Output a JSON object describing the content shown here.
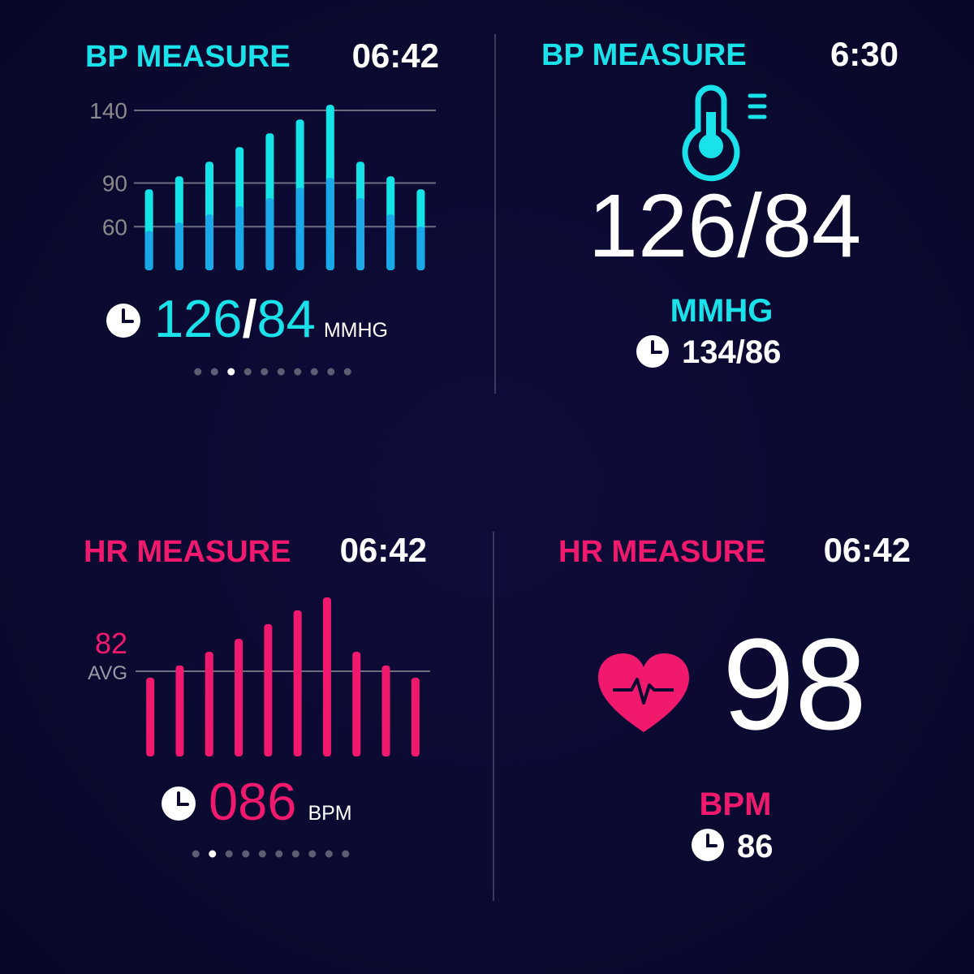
{
  "panels": [
    {
      "title": "BP MEASURE",
      "time": "06:42",
      "chart": {
        "type": "bar",
        "ylim": [
          30,
          145
        ],
        "yticks": [
          60,
          90,
          140
        ],
        "grid": true,
        "series": [
          {
            "color": "#14e4e8",
            "values": [
              85.7,
              94.6,
              104.7,
              114.7,
              124.2,
              133.7,
              143.8,
              104.7,
              94.6,
              85.7
            ]
          },
          {
            "color": "#1aa9e8",
            "values": [
              57,
              62.8,
              68.4,
              74,
              79.6,
              86.8,
              93.5,
              79.6,
              68.4,
              60
            ]
          }
        ]
      },
      "reading": {
        "systolic": "126",
        "separator": "/",
        "diastolic": "84"
      },
      "unit": "MMHG",
      "pager": {
        "pages": 10,
        "current": 3
      }
    },
    {
      "title": "BP MEASURE",
      "time": "6:30",
      "reading": "126/84",
      "unit": "MMHG",
      "previous": "134/86"
    },
    {
      "title": "HR MEASURE",
      "time": "06:42",
      "chart": {
        "type": "bar",
        "ylim": [
          0,
          160
        ],
        "yticks": [
          82
        ],
        "avg_label": "AVG",
        "grid": true,
        "color": "#f0196e",
        "values": [
          75.8,
          87.5,
          100.7,
          113.2,
          127.3,
          140.6,
          153,
          100.7,
          87.5,
          75.8
        ]
      },
      "reading": "086",
      "unit": "BPM",
      "pager": {
        "pages": 10,
        "current": 2
      }
    },
    {
      "title": "HR MEASURE",
      "time": "06:42",
      "reading": "98",
      "unit": "BPM",
      "previous": "86"
    }
  ]
}
